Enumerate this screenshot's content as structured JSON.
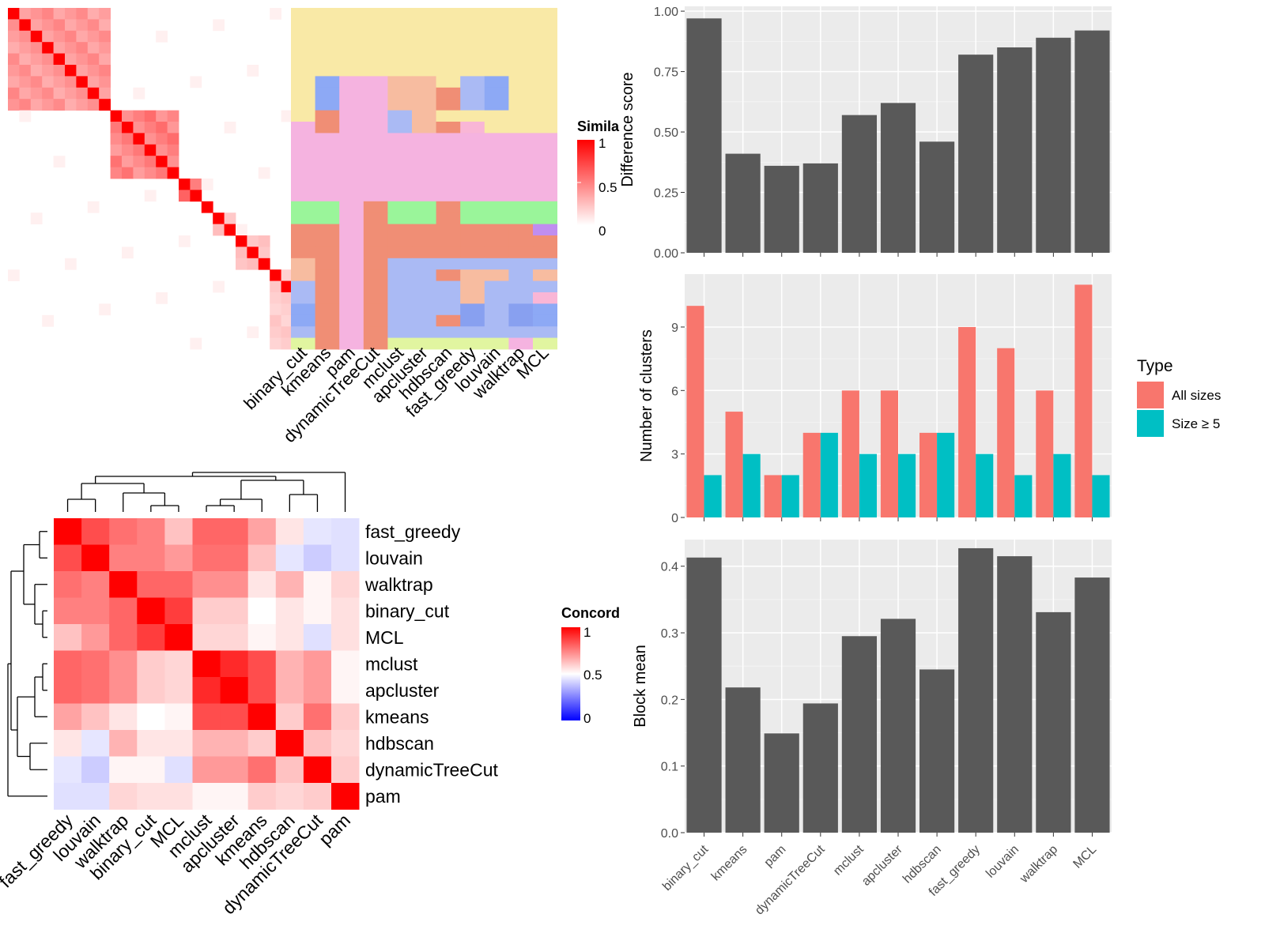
{
  "chart_data": [
    {
      "type": "heatmap",
      "id": "similarity_matrix",
      "legend": {
        "title": "Simila",
        "ticks": [
          "1",
          "0.5",
          "0"
        ],
        "low_color": "#FFFFFF",
        "high_color": "#FF0000"
      },
      "size": 30,
      "blocks": [
        [
          0,
          8,
          0.5
        ],
        [
          9,
          14,
          0.6
        ],
        [
          15,
          16,
          0.7
        ],
        [
          17,
          17,
          1
        ],
        [
          18,
          19,
          0.3
        ],
        [
          20,
          22,
          0.3
        ],
        [
          23,
          29,
          0.25
        ]
      ]
    },
    {
      "type": "heatmap",
      "id": "cluster_assignments",
      "columns": [
        "binary_cut",
        "kmeans",
        "pam",
        "dynamicTreeCut",
        "mclust",
        "apcluster",
        "hdbscan",
        "fast_greedy",
        "louvain",
        "walktrap",
        "MCL"
      ],
      "rows": 30
    },
    {
      "type": "heatmap",
      "id": "concordance",
      "legend": {
        "title": "Concord",
        "ticks": [
          "1",
          "0.5",
          "0"
        ],
        "low_color": "#0000FF",
        "mid_color": "#FFFFFF",
        "high_color": "#FF0000"
      },
      "rows": [
        "fast_greedy",
        "louvain",
        "walktrap",
        "binary_cut",
        "MCL",
        "mclust",
        "apcluster",
        "kmeans",
        "hdbscan",
        "dynamicTreeCut",
        "pam"
      ],
      "columns": [
        "fast_greedy",
        "louvain",
        "walktrap",
        "binary_cut",
        "MCL",
        "mclust",
        "apcluster",
        "kmeans",
        "hdbscan",
        "dynamicTreeCut",
        "pam"
      ],
      "values": [
        [
          1.0,
          0.85,
          0.78,
          0.75,
          0.62,
          0.8,
          0.8,
          0.68,
          0.55,
          0.45,
          0.44
        ],
        [
          0.85,
          1.0,
          0.75,
          0.75,
          0.7,
          0.78,
          0.78,
          0.62,
          0.45,
          0.4,
          0.44
        ],
        [
          0.78,
          0.75,
          1.0,
          0.8,
          0.8,
          0.72,
          0.72,
          0.55,
          0.65,
          0.52,
          0.58
        ],
        [
          0.75,
          0.75,
          0.8,
          1.0,
          0.88,
          0.6,
          0.6,
          0.5,
          0.55,
          0.52,
          0.56
        ],
        [
          0.62,
          0.7,
          0.8,
          0.88,
          1.0,
          0.58,
          0.58,
          0.52,
          0.55,
          0.44,
          0.56
        ],
        [
          0.8,
          0.78,
          0.72,
          0.6,
          0.58,
          1.0,
          0.92,
          0.85,
          0.65,
          0.7,
          0.52
        ],
        [
          0.8,
          0.78,
          0.72,
          0.6,
          0.58,
          0.92,
          1.0,
          0.85,
          0.65,
          0.7,
          0.52
        ],
        [
          0.68,
          0.62,
          0.55,
          0.5,
          0.52,
          0.85,
          0.85,
          1.0,
          0.6,
          0.78,
          0.6
        ],
        [
          0.55,
          0.45,
          0.65,
          0.55,
          0.55,
          0.65,
          0.65,
          0.6,
          1.0,
          0.62,
          0.58
        ],
        [
          0.45,
          0.4,
          0.52,
          0.52,
          0.44,
          0.7,
          0.7,
          0.78,
          0.62,
          1.0,
          0.6
        ],
        [
          0.44,
          0.44,
          0.58,
          0.56,
          0.56,
          0.52,
          0.52,
          0.6,
          0.58,
          0.6,
          1.0
        ]
      ]
    },
    {
      "type": "bar",
      "id": "difference_score",
      "categories": [
        "binary_cut",
        "kmeans",
        "pam",
        "dynamicTreeCut",
        "mclust",
        "apcluster",
        "hdbscan",
        "fast_greedy",
        "louvain",
        "walktrap",
        "MCL"
      ],
      "values": [
        0.97,
        0.41,
        0.36,
        0.37,
        0.57,
        0.62,
        0.46,
        0.82,
        0.85,
        0.89,
        0.92
      ],
      "ylabel": "Difference score",
      "ylim": [
        0,
        1.02
      ],
      "yticks": [
        0,
        0.25,
        0.5,
        0.75,
        1
      ],
      "ytick_labels": [
        "0.00",
        "0.25",
        "0.50",
        "0.75",
        "1.00"
      ],
      "grid": true,
      "color": "#595959"
    },
    {
      "type": "bar",
      "id": "number_of_clusters",
      "categories": [
        "binary_cut",
        "kmeans",
        "pam",
        "dynamicTreeCut",
        "mclust",
        "apcluster",
        "hdbscan",
        "fast_greedy",
        "louvain",
        "walktrap",
        "MCL"
      ],
      "series": [
        {
          "name": "All sizes",
          "values": [
            10,
            5,
            2,
            4,
            6,
            6,
            4,
            9,
            8,
            6,
            11
          ],
          "color": "#F8766D"
        },
        {
          "name": "Size ≥ 5",
          "values": [
            2,
            3,
            2,
            4,
            3,
            3,
            4,
            3,
            2,
            3,
            2
          ],
          "color": "#00BFC4"
        }
      ],
      "ylabel": "Number of clusters",
      "ylim": [
        0,
        11.5
      ],
      "yticks": [
        0,
        3,
        6,
        9
      ],
      "ytick_labels": [
        "0",
        "3",
        "6",
        "9"
      ],
      "legend": {
        "title": "Type",
        "position": "right"
      },
      "grid": true
    },
    {
      "type": "bar",
      "id": "block_mean",
      "categories": [
        "binary_cut",
        "kmeans",
        "pam",
        "dynamicTreeCut",
        "mclust",
        "apcluster",
        "hdbscan",
        "fast_greedy",
        "louvain",
        "walktrap",
        "MCL"
      ],
      "values": [
        0.413,
        0.218,
        0.149,
        0.194,
        0.295,
        0.321,
        0.245,
        0.427,
        0.415,
        0.331,
        0.383
      ],
      "ylabel": "Block mean",
      "ylim": [
        0,
        0.44
      ],
      "yticks": [
        0,
        0.1,
        0.2,
        0.3,
        0.4
      ],
      "ytick_labels": [
        "0.0",
        "0.1",
        "0.2",
        "0.3",
        "0.4"
      ],
      "grid": true,
      "color": "#595959"
    }
  ]
}
